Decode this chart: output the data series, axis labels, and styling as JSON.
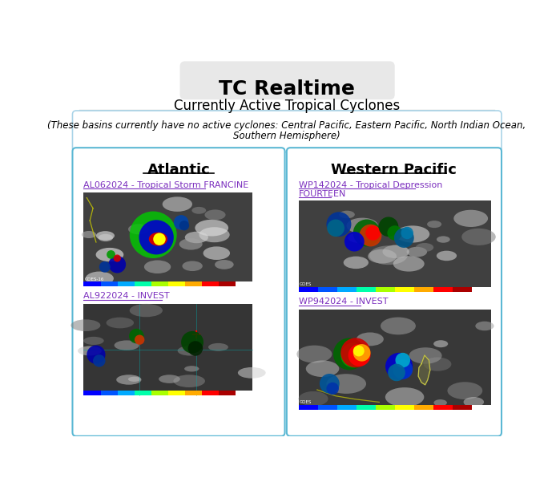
{
  "title": "TC Realtime",
  "subtitle": "Currently Active Tropical Cyclones",
  "notice_line1": "(These basins currently have no active cyclones: Central Pacific, Eastern Pacific, North Indian Ocean,",
  "notice_line2": "Southern Hemisphere)",
  "col_left_header": "Atlantic",
  "col_right_header": "Western Pacific",
  "left_links": [
    "AL062024 - Tropical Storm FRANCINE",
    "AL922024 - INVEST"
  ],
  "right_links": [
    "WP142024 - Tropical Depression\nFOURTEEN",
    "WP942024 - INVEST"
  ],
  "link_color": "#7B2FBE",
  "bg_color": "#ffffff",
  "title_bg": "#e8e8e8",
  "notice_border": "#aad4e8",
  "panel_border": "#5bb8d4",
  "header_color": "#000000",
  "notice_text_color": "#000000",
  "sep_line_color": "#cccccc",
  "bar_colors": [
    "#0000ff",
    "#0055ff",
    "#00aaff",
    "#00ffaa",
    "#aaff00",
    "#ffff00",
    "#ffaa00",
    "#ff0000",
    "#aa0000",
    "#ffffff"
  ]
}
